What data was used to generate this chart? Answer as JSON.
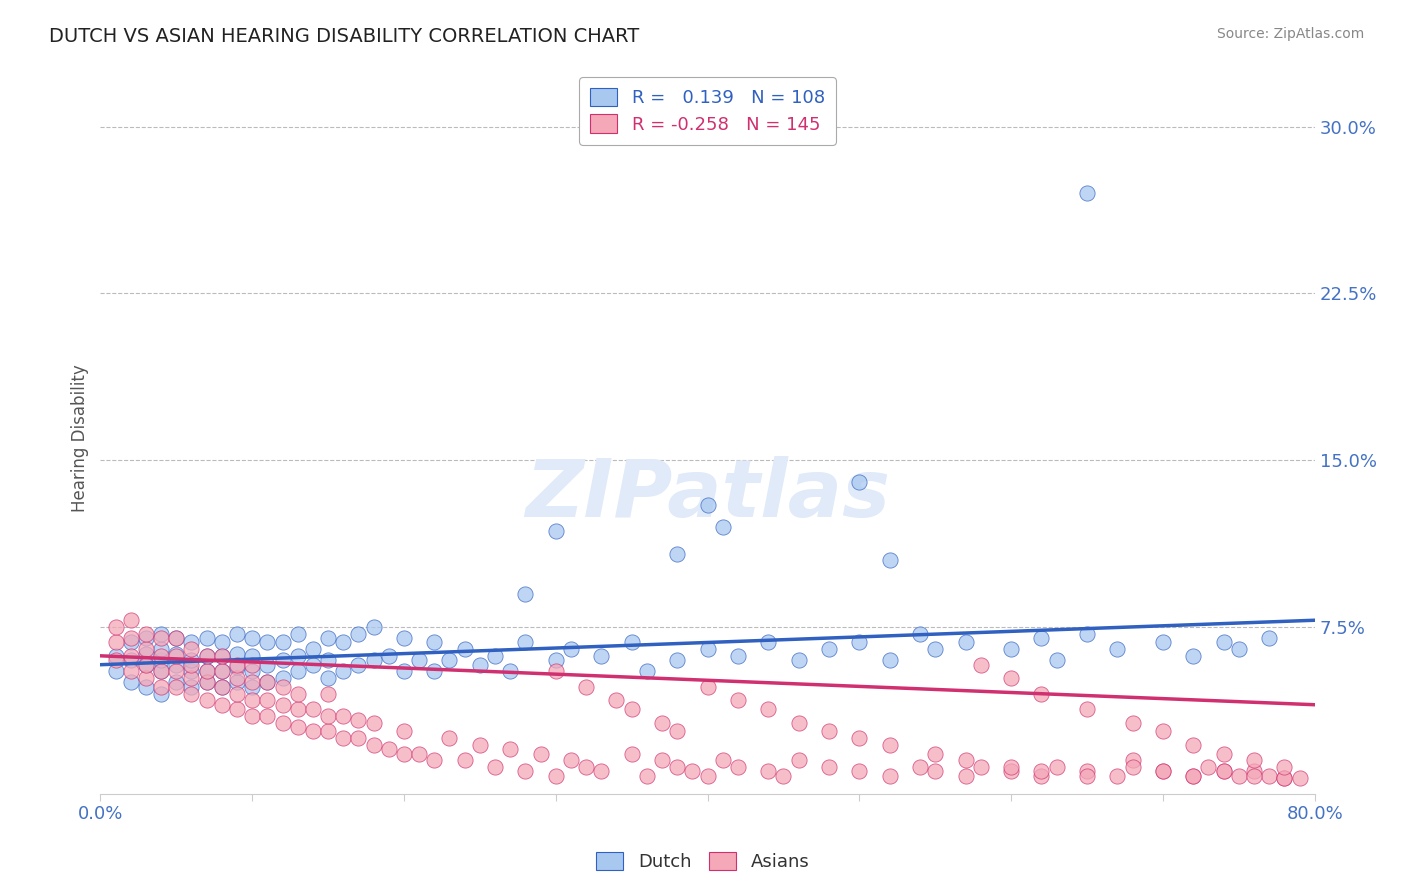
{
  "title": "DUTCH VS ASIAN HEARING DISABILITY CORRELATION CHART",
  "source": "Source: ZipAtlas.com",
  "ylabel": "Hearing Disability",
  "xrange": [
    0.0,
    0.8
  ],
  "yrange": [
    0.0,
    0.32
  ],
  "dutch_R": 0.139,
  "dutch_N": 108,
  "asian_R": -0.258,
  "asian_N": 145,
  "dutch_color": "#a8c8f0",
  "dutch_line_color": "#3060c0",
  "asian_color": "#f4a8b8",
  "asian_line_color": "#d03070",
  "legend_R_color_dutch": "#3060c0",
  "legend_R_color_asian": "#d03070",
  "background_color": "#ffffff",
  "grid_color": "#bbbbbb",
  "axis_label_color": "#4472c4",
  "watermark_text": "ZIPatlas",
  "dutch_trend_start": 0.058,
  "dutch_trend_end": 0.078,
  "asian_trend_start": 0.062,
  "asian_trend_end": 0.04,
  "dutch_scatter_x": [
    0.01,
    0.01,
    0.02,
    0.02,
    0.02,
    0.03,
    0.03,
    0.03,
    0.03,
    0.04,
    0.04,
    0.04,
    0.04,
    0.04,
    0.05,
    0.05,
    0.05,
    0.05,
    0.06,
    0.06,
    0.06,
    0.06,
    0.07,
    0.07,
    0.07,
    0.07,
    0.08,
    0.08,
    0.08,
    0.08,
    0.09,
    0.09,
    0.09,
    0.09,
    0.1,
    0.1,
    0.1,
    0.1,
    0.11,
    0.11,
    0.11,
    0.12,
    0.12,
    0.12,
    0.13,
    0.13,
    0.13,
    0.14,
    0.14,
    0.15,
    0.15,
    0.15,
    0.16,
    0.16,
    0.17,
    0.17,
    0.18,
    0.18,
    0.19,
    0.2,
    0.2,
    0.21,
    0.22,
    0.22,
    0.23,
    0.24,
    0.25,
    0.26,
    0.27,
    0.28,
    0.3,
    0.31,
    0.33,
    0.35,
    0.36,
    0.38,
    0.4,
    0.42,
    0.44,
    0.46,
    0.48,
    0.5,
    0.52,
    0.54,
    0.55,
    0.57,
    0.6,
    0.62,
    0.63,
    0.65,
    0.67,
    0.7,
    0.72,
    0.74,
    0.75,
    0.77,
    0.3,
    0.4,
    0.5,
    0.52,
    0.38,
    0.41,
    0.28,
    0.65
  ],
  "dutch_scatter_y": [
    0.055,
    0.062,
    0.05,
    0.06,
    0.068,
    0.048,
    0.058,
    0.063,
    0.07,
    0.045,
    0.055,
    0.06,
    0.065,
    0.072,
    0.05,
    0.058,
    0.063,
    0.07,
    0.048,
    0.055,
    0.06,
    0.068,
    0.05,
    0.055,
    0.062,
    0.07,
    0.048,
    0.055,
    0.062,
    0.068,
    0.05,
    0.057,
    0.063,
    0.072,
    0.048,
    0.055,
    0.062,
    0.07,
    0.05,
    0.058,
    0.068,
    0.052,
    0.06,
    0.068,
    0.055,
    0.062,
    0.072,
    0.058,
    0.065,
    0.052,
    0.06,
    0.07,
    0.055,
    0.068,
    0.058,
    0.072,
    0.06,
    0.075,
    0.062,
    0.055,
    0.07,
    0.06,
    0.055,
    0.068,
    0.06,
    0.065,
    0.058,
    0.062,
    0.055,
    0.068,
    0.06,
    0.065,
    0.062,
    0.068,
    0.055,
    0.06,
    0.065,
    0.062,
    0.068,
    0.06,
    0.065,
    0.068,
    0.06,
    0.072,
    0.065,
    0.068,
    0.065,
    0.07,
    0.06,
    0.072,
    0.065,
    0.068,
    0.062,
    0.068,
    0.065,
    0.07,
    0.118,
    0.13,
    0.14,
    0.105,
    0.108,
    0.12,
    0.09,
    0.27
  ],
  "asian_scatter_x": [
    0.01,
    0.01,
    0.01,
    0.02,
    0.02,
    0.02,
    0.02,
    0.03,
    0.03,
    0.03,
    0.03,
    0.04,
    0.04,
    0.04,
    0.04,
    0.05,
    0.05,
    0.05,
    0.05,
    0.06,
    0.06,
    0.06,
    0.06,
    0.07,
    0.07,
    0.07,
    0.07,
    0.08,
    0.08,
    0.08,
    0.08,
    0.09,
    0.09,
    0.09,
    0.09,
    0.1,
    0.1,
    0.1,
    0.1,
    0.11,
    0.11,
    0.11,
    0.12,
    0.12,
    0.12,
    0.13,
    0.13,
    0.13,
    0.14,
    0.14,
    0.15,
    0.15,
    0.15,
    0.16,
    0.16,
    0.17,
    0.17,
    0.18,
    0.18,
    0.19,
    0.2,
    0.2,
    0.21,
    0.22,
    0.23,
    0.24,
    0.25,
    0.26,
    0.27,
    0.28,
    0.29,
    0.3,
    0.31,
    0.32,
    0.33,
    0.35,
    0.36,
    0.37,
    0.38,
    0.39,
    0.4,
    0.41,
    0.42,
    0.44,
    0.45,
    0.46,
    0.48,
    0.5,
    0.52,
    0.54,
    0.55,
    0.57,
    0.58,
    0.6,
    0.62,
    0.63,
    0.65,
    0.67,
    0.68,
    0.7,
    0.72,
    0.73,
    0.74,
    0.75,
    0.76,
    0.77,
    0.78,
    0.79,
    0.4,
    0.42,
    0.44,
    0.46,
    0.48,
    0.5,
    0.52,
    0.55,
    0.57,
    0.6,
    0.62,
    0.65,
    0.68,
    0.7,
    0.72,
    0.74,
    0.76,
    0.78,
    0.3,
    0.32,
    0.34,
    0.35,
    0.37,
    0.38,
    0.58,
    0.6,
    0.62,
    0.65,
    0.68,
    0.7,
    0.72,
    0.74,
    0.76,
    0.78
  ],
  "asian_scatter_y": [
    0.06,
    0.068,
    0.075,
    0.055,
    0.062,
    0.07,
    0.078,
    0.052,
    0.058,
    0.065,
    0.072,
    0.048,
    0.055,
    0.062,
    0.07,
    0.048,
    0.055,
    0.062,
    0.07,
    0.045,
    0.052,
    0.058,
    0.065,
    0.042,
    0.05,
    0.055,
    0.062,
    0.04,
    0.048,
    0.055,
    0.062,
    0.038,
    0.045,
    0.052,
    0.058,
    0.035,
    0.042,
    0.05,
    0.058,
    0.035,
    0.042,
    0.05,
    0.032,
    0.04,
    0.048,
    0.03,
    0.038,
    0.045,
    0.028,
    0.038,
    0.028,
    0.035,
    0.045,
    0.025,
    0.035,
    0.025,
    0.033,
    0.022,
    0.032,
    0.02,
    0.018,
    0.028,
    0.018,
    0.015,
    0.025,
    0.015,
    0.022,
    0.012,
    0.02,
    0.01,
    0.018,
    0.008,
    0.015,
    0.012,
    0.01,
    0.018,
    0.008,
    0.015,
    0.012,
    0.01,
    0.008,
    0.015,
    0.012,
    0.01,
    0.008,
    0.015,
    0.012,
    0.01,
    0.008,
    0.012,
    0.01,
    0.008,
    0.012,
    0.01,
    0.008,
    0.012,
    0.01,
    0.008,
    0.015,
    0.01,
    0.008,
    0.012,
    0.01,
    0.008,
    0.01,
    0.008,
    0.007,
    0.007,
    0.048,
    0.042,
    0.038,
    0.032,
    0.028,
    0.025,
    0.022,
    0.018,
    0.015,
    0.012,
    0.01,
    0.008,
    0.012,
    0.01,
    0.008,
    0.01,
    0.008,
    0.007,
    0.055,
    0.048,
    0.042,
    0.038,
    0.032,
    0.028,
    0.058,
    0.052,
    0.045,
    0.038,
    0.032,
    0.028,
    0.022,
    0.018,
    0.015,
    0.012
  ]
}
